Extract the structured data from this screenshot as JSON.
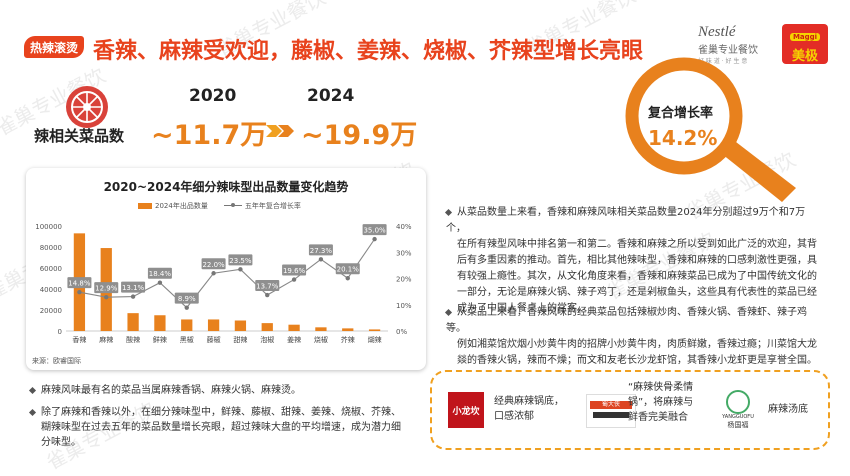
{
  "watermark": "雀巢专业餐饮",
  "header": {
    "badge": "热辣滚烫",
    "title": "香辣、麻辣受欢迎，藤椒、姜辣、烧椒、芥辣型增长亮眼"
  },
  "brands_top": {
    "nestle_name": "Nestlé",
    "nestle_sub": "雀巢专业餐饮",
    "nestle_tagline": "好 味 道 · 好 生 意",
    "maggi_tag": "Maggi",
    "maggi_name": "美极"
  },
  "metric": {
    "label": "辣相关菜品数",
    "year_start": "2020",
    "year_end": "2024",
    "value_start": "~11.7万",
    "value_end": "~19.9万",
    "cagr_label": "复合增长率",
    "cagr_value": "14.2%"
  },
  "colors": {
    "accent": "#e8431d",
    "orange": "#e8811d",
    "line": "#888888",
    "gray_box": "#8f8f8f"
  },
  "chart_data": {
    "type": "bar",
    "title": "2020~2024年细分辣味型出品数量变化趋势",
    "categories": [
      "香辣",
      "麻辣",
      "酸辣",
      "鲜辣",
      "黑椒",
      "藤椒",
      "甜辣",
      "泡椒",
      "姜辣",
      "烧椒",
      "芥辣",
      "煳辣"
    ],
    "series": [
      {
        "name": "2024年出品数量",
        "type": "bar",
        "axis": "left",
        "values": [
          93000,
          79000,
          17000,
          15000,
          11000,
          11000,
          10000,
          7500,
          6000,
          3500,
          2500,
          1500
        ]
      },
      {
        "name": "五年年复合增长率",
        "type": "line",
        "axis": "right",
        "values": [
          14.8,
          12.9,
          13.1,
          18.4,
          8.9,
          22.0,
          23.5,
          13.7,
          19.6,
          27.3,
          20.1,
          35.0
        ],
        "labels": [
          "14.8%",
          "12.9%",
          "13.1%",
          "18.4%",
          "8.9%",
          "22.0%",
          "23.5%",
          "13.7%",
          "19.6%",
          "27.3%",
          "20.1%",
          "35.0%"
        ]
      }
    ],
    "y_left_ticks": [
      "100000",
      "80000",
      "60000",
      "40000",
      "20000",
      "0"
    ],
    "y_right_ticks": [
      "40%",
      "30%",
      "20%",
      "10%",
      "0%"
    ],
    "ylim_left": [
      0,
      100000
    ],
    "ylim_right": [
      0,
      40
    ],
    "legend_position": "top",
    "source": "来源：欧睿国际"
  },
  "left_bullets": [
    {
      "lines": [
        "麻辣风味最有名的菜品当属麻辣香锅、麻辣火锅、麻辣烫。"
      ]
    },
    {
      "lines": [
        "除了麻辣和香辣以外，在细分辣味型中，鲜辣、藤椒、甜辣、姜辣、烧椒、芥辣、",
        "糊辣味型在过去五年的菜品数量增长亮眼，超过辣味大盘的平均增速，成为潜力细",
        "分味型。"
      ]
    }
  ],
  "right_bullets": [
    {
      "lines": [
        "从菜品数量上来看，香辣和麻辣风味相关菜品数量2024年分别超过9万个和7万个，",
        "在所有辣型风味中排名第一和第二。香辣和麻辣之所以受到如此广泛的欢迎，其背",
        "后有多重因素的推动。首先，相比其他辣味型，香辣和麻辣的口感刺激性更强，具",
        "有较强上瘾性。其次，从文化角度来看，香辣和麻辣菜品已成为了中国传统文化的",
        "一部分，无论是麻辣火锅、辣子鸡丁，还是剁椒鱼头，这些具有代表性的菜品已经",
        "成为了中国人餐桌上的常客。"
      ]
    },
    {
      "lines": [
        "从菜品上来看，香辣风味的经典菜品包括辣椒炒肉、香辣火锅、香辣虾、辣子鸡等。",
        "例如湘菜馆炊烟小炒黄牛肉的招牌小炒黄牛肉，肉质鲜嫩，香辣过瘾；川菜馆大龙",
        "燚的香辣火锅，辣而不燥；而文和友老长沙龙虾馆，其香辣小龙虾更是享誉全国。"
      ]
    }
  ],
  "brands": {
    "b1_logo": "小龙坎",
    "b1_lines": [
      "经典麻辣锅底，",
      "口感浓郁"
    ],
    "b2_logo": "蜀大侠",
    "b2_lines": [
      "“麻辣侠骨柔情",
      "锅”，将麻辣与",
      "鲜香完美融合"
    ],
    "b3_logo_en": "YANGGUOFU",
    "b3_logo_cn": "杨国福",
    "b3_text": "麻辣汤底"
  }
}
